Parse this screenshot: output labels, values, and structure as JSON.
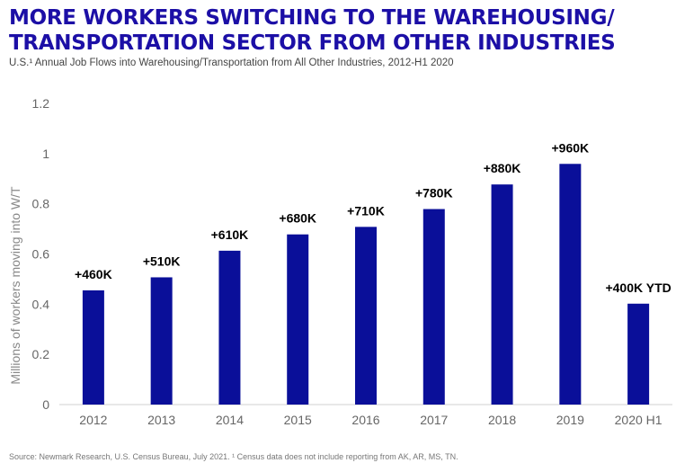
{
  "title_line1": "MORE WORKERS SWITCHING TO THE WAREHOUSING/",
  "title_line2": "TRANSPORTATION SECTOR FROM OTHER INDUSTRIES",
  "subtitle": "U.S.¹ Annual Job Flows into Warehousing/Transportation from All Other Industries, 2012-H1 2020",
  "source": "Source: Newmark Research, U.S. Census Bureau, July 2021. ¹ Census data does not include reporting from AK, AR, MS, TN.",
  "colors": {
    "bar": "#0a0f99",
    "title": "#1c0fa6"
  },
  "chart_data": {
    "type": "bar",
    "ylabel": "Millions of workers moving into W/T",
    "xlabel": "",
    "ylim": [
      0,
      1.2
    ],
    "yticks": [
      "0",
      "0.2",
      "0.4",
      "0.6",
      "0.8",
      "1",
      "1.2"
    ],
    "ytick_values": [
      0,
      0.2,
      0.4,
      0.6,
      0.8,
      1.0,
      1.2
    ],
    "categories": [
      "2012",
      "2013",
      "2014",
      "2015",
      "2016",
      "2017",
      "2018",
      "2019",
      "2020 H1"
    ],
    "values": [
      0.455,
      0.507,
      0.613,
      0.678,
      0.708,
      0.779,
      0.877,
      0.959,
      0.402
    ],
    "data_labels": [
      "+460K",
      "+510K",
      "+610K",
      "+680K",
      "+710K",
      "+780K",
      "+880K",
      "+960K",
      "+400K YTD"
    ],
    "grid": false,
    "legend": "none"
  }
}
